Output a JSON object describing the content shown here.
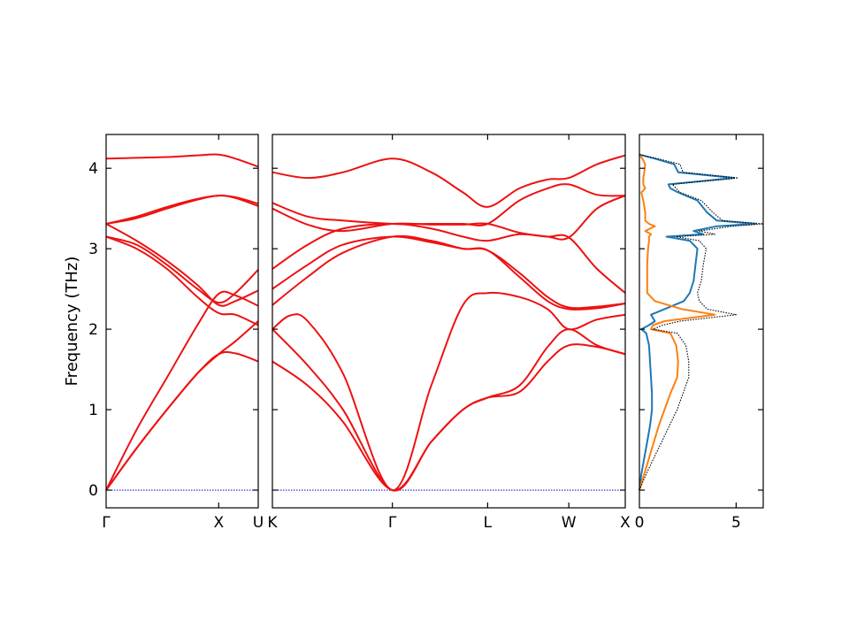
{
  "chart_data": [
    {
      "type": "line",
      "panel": "band-structure-left",
      "ylabel": "Frequency (THz)",
      "ylim": [
        -0.22,
        4.42
      ],
      "xlim": [
        0,
        1
      ],
      "yticks": [
        0,
        1,
        2,
        3,
        4
      ],
      "xtick_labels": [
        {
          "x": 0,
          "label": "Γ"
        },
        {
          "x": 0.74,
          "label": "X"
        },
        {
          "x": 1,
          "label": "U"
        }
      ],
      "grid": false,
      "zero_line_color": "#0000cc",
      "band_color": "#ee1111",
      "series": [
        {
          "x": [
            0,
            0.2,
            0.4,
            0.6,
            0.74,
            0.85,
            1
          ],
          "values": [
            0,
            0.52,
            1.0,
            1.45,
            1.69,
            1.7,
            1.6
          ]
        },
        {
          "x": [
            0,
            0.2,
            0.4,
            0.6,
            0.74,
            0.85,
            1
          ],
          "values": [
            0,
            0.52,
            1.0,
            1.45,
            1.69,
            1.85,
            2.1
          ]
        },
        {
          "x": [
            0,
            0.2,
            0.4,
            0.6,
            0.74,
            0.85,
            1
          ],
          "values": [
            0,
            0.75,
            1.4,
            2.05,
            2.44,
            2.42,
            2.29
          ]
        },
        {
          "x": [
            0,
            0.2,
            0.4,
            0.6,
            0.74,
            0.85,
            1
          ],
          "values": [
            3.15,
            3.0,
            2.75,
            2.4,
            2.2,
            2.18,
            2.05
          ]
        },
        {
          "x": [
            0,
            0.2,
            0.4,
            0.6,
            0.74,
            0.85,
            1
          ],
          "values": [
            3.15,
            3.05,
            2.8,
            2.5,
            2.33,
            2.45,
            2.74
          ]
        },
        {
          "x": [
            0,
            0.2,
            0.4,
            0.6,
            0.74,
            0.85,
            1
          ],
          "values": [
            3.31,
            3.1,
            2.85,
            2.55,
            2.3,
            2.35,
            2.48
          ]
        },
        {
          "x": [
            0,
            0.2,
            0.4,
            0.6,
            0.74,
            0.85,
            1
          ],
          "values": [
            3.31,
            3.4,
            3.52,
            3.62,
            3.66,
            3.64,
            3.56
          ]
        },
        {
          "x": [
            0,
            0.2,
            0.4,
            0.6,
            0.74,
            0.85,
            1
          ],
          "values": [
            3.31,
            3.38,
            3.5,
            3.61,
            3.66,
            3.63,
            3.53
          ]
        },
        {
          "x": [
            0,
            0.2,
            0.4,
            0.6,
            0.74,
            0.85,
            1
          ],
          "values": [
            4.12,
            4.13,
            4.14,
            4.16,
            4.17,
            4.12,
            4.02
          ]
        }
      ]
    },
    {
      "type": "line",
      "panel": "band-structure-right",
      "ylim": [
        -0.22,
        4.42
      ],
      "xlim": [
        0,
        1
      ],
      "xtick_labels": [
        {
          "x": 0,
          "label": "K"
        },
        {
          "x": 0.34,
          "label": "Γ"
        },
        {
          "x": 0.61,
          "label": "L"
        },
        {
          "x": 0.84,
          "label": "W"
        },
        {
          "x": 1,
          "label": "X"
        }
      ],
      "grid": false,
      "series": [
        {
          "x": [
            0,
            0.1,
            0.2,
            0.34,
            0.45,
            0.54,
            0.61,
            0.7,
            0.78,
            0.84,
            0.92,
            1
          ],
          "values": [
            1.6,
            1.3,
            0.85,
            0,
            0.6,
            1.0,
            1.15,
            1.22,
            1.6,
            1.8,
            1.78,
            1.69
          ]
        },
        {
          "x": [
            0,
            0.1,
            0.2,
            0.34,
            0.45,
            0.54,
            0.61,
            0.7,
            0.78,
            0.84,
            0.92,
            1
          ],
          "values": [
            2.0,
            1.55,
            1.0,
            0,
            0.6,
            1.0,
            1.15,
            1.3,
            1.78,
            2.0,
            1.8,
            1.69
          ]
        },
        {
          "x": [
            0,
            0.05,
            0.1,
            0.2,
            0.34,
            0.45,
            0.54,
            0.61,
            0.7,
            0.78,
            0.84,
            0.92,
            1
          ],
          "values": [
            2.0,
            2.17,
            2.1,
            1.45,
            0,
            1.3,
            2.3,
            2.45,
            2.4,
            2.25,
            2.0,
            2.12,
            2.18
          ]
        },
        {
          "x": [
            0,
            0.1,
            0.2,
            0.34,
            0.45,
            0.54,
            0.61,
            0.7,
            0.78,
            0.84,
            0.92,
            1
          ],
          "values": [
            2.3,
            2.65,
            2.95,
            3.15,
            3.1,
            3.0,
            2.98,
            2.7,
            2.4,
            2.27,
            2.28,
            2.32
          ]
        },
        {
          "x": [
            0,
            0.1,
            0.2,
            0.34,
            0.45,
            0.54,
            0.61,
            0.7,
            0.78,
            0.84,
            0.92,
            1
          ],
          "values": [
            2.5,
            2.8,
            3.05,
            3.15,
            3.08,
            3.0,
            2.98,
            2.65,
            2.35,
            2.25,
            2.26,
            2.32
          ]
        },
        {
          "x": [
            0,
            0.1,
            0.2,
            0.34,
            0.45,
            0.54,
            0.61,
            0.7,
            0.78,
            0.84,
            0.92,
            1
          ],
          "values": [
            2.75,
            3.05,
            3.25,
            3.31,
            3.25,
            3.15,
            3.1,
            3.18,
            3.15,
            3.14,
            2.75,
            2.45
          ]
        },
        {
          "x": [
            0,
            0.1,
            0.2,
            0.34,
            0.45,
            0.54,
            0.61,
            0.7,
            0.78,
            0.84,
            0.92,
            1
          ],
          "values": [
            3.5,
            3.3,
            3.22,
            3.31,
            3.3,
            3.3,
            3.31,
            3.2,
            3.15,
            3.14,
            3.5,
            3.66
          ]
        },
        {
          "x": [
            0,
            0.1,
            0.2,
            0.34,
            0.45,
            0.54,
            0.61,
            0.7,
            0.78,
            0.84,
            0.92,
            1
          ],
          "values": [
            3.57,
            3.4,
            3.35,
            3.31,
            3.31,
            3.31,
            3.31,
            3.6,
            3.75,
            3.8,
            3.67,
            3.66
          ]
        },
        {
          "x": [
            0,
            0.1,
            0.2,
            0.34,
            0.45,
            0.54,
            0.61,
            0.7,
            0.78,
            0.84,
            0.92,
            1
          ],
          "values": [
            3.95,
            3.88,
            3.95,
            4.12,
            3.95,
            3.7,
            3.52,
            3.75,
            3.86,
            3.88,
            4.05,
            4.16
          ]
        }
      ]
    },
    {
      "type": "line",
      "panel": "dos",
      "xlim": [
        0,
        6.4
      ],
      "ylim": [
        -0.22,
        4.42
      ],
      "xticks": [
        0,
        5
      ],
      "grid": false,
      "series": [
        {
          "color": "#1f77b4",
          "style": "solid",
          "y": [
            0.0,
            0.2,
            0.4,
            0.6,
            0.8,
            1.0,
            1.2,
            1.4,
            1.6,
            1.8,
            1.95,
            2.0,
            2.05,
            2.1,
            2.18,
            2.25,
            2.35,
            2.45,
            2.6,
            2.8,
            3.0,
            3.1,
            3.15,
            3.18,
            3.22,
            3.28,
            3.31,
            3.35,
            3.45,
            3.6,
            3.7,
            3.75,
            3.8,
            3.88,
            3.95,
            4.05,
            4.12,
            4.17
          ],
          "values": [
            0,
            0.1,
            0.25,
            0.4,
            0.55,
            0.65,
            0.65,
            0.6,
            0.55,
            0.5,
            0.35,
            0.1,
            0.5,
            0.8,
            0.6,
            1.3,
            2.3,
            2.6,
            2.8,
            2.9,
            3.0,
            2.6,
            1.4,
            3.3,
            2.8,
            4.0,
            6.0,
            4.0,
            3.5,
            3.0,
            2.0,
            1.6,
            1.5,
            4.9,
            2.0,
            1.8,
            0.8,
            0
          ]
        },
        {
          "color": "#ff7f0e",
          "style": "solid",
          "y": [
            0.0,
            0.2,
            0.4,
            0.6,
            0.8,
            1.0,
            1.2,
            1.4,
            1.6,
            1.8,
            1.95,
            2.0,
            2.05,
            2.1,
            2.18,
            2.25,
            2.35,
            2.45,
            2.6,
            2.8,
            3.0,
            3.1,
            3.15,
            3.18,
            3.22,
            3.28,
            3.31,
            3.35,
            3.45,
            3.6,
            3.7,
            3.75,
            3.8,
            3.88,
            3.95,
            4.05,
            4.12,
            4.17
          ],
          "values": [
            0,
            0.25,
            0.5,
            0.75,
            1.0,
            1.3,
            1.6,
            1.95,
            2.0,
            1.9,
            1.6,
            0.6,
            0.7,
            1.3,
            3.9,
            2.2,
            0.8,
            0.4,
            0.4,
            0.4,
            0.45,
            0.5,
            0.5,
            0.6,
            0.3,
            0.8,
            0.5,
            0.3,
            0.3,
            0.2,
            0.1,
            0.3,
            0.2,
            0.2,
            0.25,
            0.3,
            0.15,
            0
          ]
        },
        {
          "color": "#000000",
          "style": "dotted",
          "y": [
            0.0,
            0.2,
            0.4,
            0.6,
            0.8,
            1.0,
            1.2,
            1.4,
            1.6,
            1.8,
            1.95,
            2.0,
            2.05,
            2.1,
            2.18,
            2.25,
            2.35,
            2.45,
            2.6,
            2.8,
            3.0,
            3.1,
            3.15,
            3.18,
            3.22,
            3.28,
            3.31,
            3.35,
            3.45,
            3.6,
            3.7,
            3.75,
            3.8,
            3.88,
            3.95,
            4.05,
            4.12,
            4.17
          ],
          "values": [
            0,
            0.35,
            0.75,
            1.15,
            1.55,
            1.95,
            2.25,
            2.55,
            2.55,
            2.4,
            1.95,
            0.7,
            1.2,
            2.1,
            5.0,
            3.5,
            3.1,
            3.0,
            3.2,
            3.3,
            3.45,
            3.1,
            1.9,
            3.9,
            3.1,
            4.8,
            6.4,
            4.3,
            3.8,
            3.2,
            2.1,
            1.9,
            1.7,
            5.1,
            2.25,
            2.1,
            0.95,
            0
          ]
        }
      ]
    }
  ]
}
